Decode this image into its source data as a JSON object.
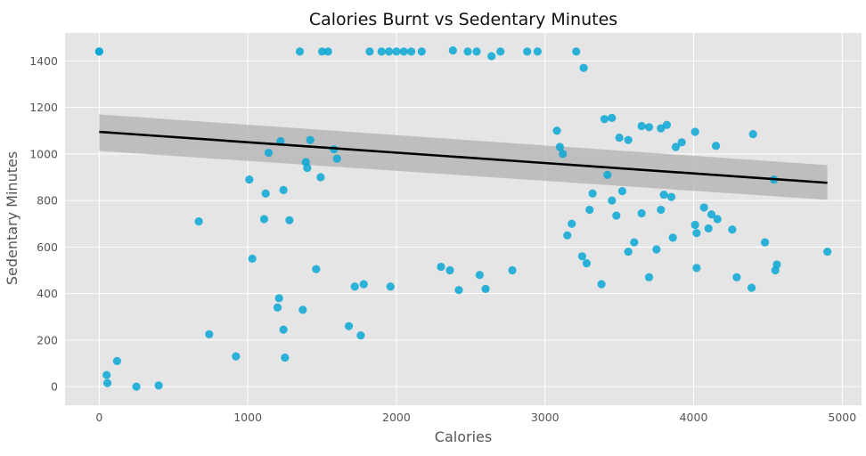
{
  "chart_data": {
    "type": "scatter",
    "title": "Calories Burnt vs Sedentary Minutes",
    "xlabel": "Calories",
    "ylabel": "Sedentary Minutes",
    "xlim": [
      -230,
      5130
    ],
    "ylim": [
      -80,
      1520
    ],
    "xticks": [
      0,
      1000,
      2000,
      3000,
      4000,
      5000
    ],
    "yticks": [
      0,
      200,
      400,
      600,
      800,
      1000,
      1200,
      1400
    ],
    "grid": true,
    "style": "ggplot",
    "colors": {
      "panel": "#E5E5E5",
      "grid": "#FFFFFF",
      "points": "#0BA7D5",
      "fit_line": "#000000",
      "ci_band": "#B0B0B0"
    },
    "regression": {
      "x_start": 0,
      "x_end": 4900,
      "y_start": 1095,
      "y_end": 876,
      "ci_start": [
        1013,
        1170
      ],
      "ci_end": [
        803,
        952
      ]
    },
    "series": [
      {
        "points": [
          [
            0,
            1440
          ],
          [
            0,
            1440
          ],
          [
            50,
            50
          ],
          [
            55,
            15
          ],
          [
            120,
            110
          ],
          [
            250,
            0
          ],
          [
            400,
            5
          ],
          [
            670,
            710
          ],
          [
            740,
            225
          ],
          [
            920,
            130
          ],
          [
            1010,
            890
          ],
          [
            1030,
            550
          ],
          [
            1110,
            720
          ],
          [
            1120,
            830
          ],
          [
            1140,
            1005
          ],
          [
            1200,
            340
          ],
          [
            1210,
            380
          ],
          [
            1220,
            1055
          ],
          [
            1240,
            245
          ],
          [
            1240,
            845
          ],
          [
            1250,
            125
          ],
          [
            1280,
            715
          ],
          [
            1350,
            1440
          ],
          [
            1370,
            330
          ],
          [
            1390,
            965
          ],
          [
            1400,
            940
          ],
          [
            1420,
            1060
          ],
          [
            1460,
            505
          ],
          [
            1490,
            900
          ],
          [
            1500,
            1440
          ],
          [
            1540,
            1440
          ],
          [
            1580,
            1020
          ],
          [
            1600,
            980
          ],
          [
            1680,
            260
          ],
          [
            1720,
            430
          ],
          [
            1760,
            220
          ],
          [
            1780,
            440
          ],
          [
            1820,
            1440
          ],
          [
            1900,
            1440
          ],
          [
            1950,
            1440
          ],
          [
            1960,
            430
          ],
          [
            2000,
            1440
          ],
          [
            2050,
            1440
          ],
          [
            2100,
            1440
          ],
          [
            2170,
            1440
          ],
          [
            2380,
            1445
          ],
          [
            2480,
            1440
          ],
          [
            2540,
            1440
          ],
          [
            2640,
            1420
          ],
          [
            2700,
            1440
          ],
          [
            2880,
            1440
          ],
          [
            2950,
            1440
          ],
          [
            3210,
            1440
          ],
          [
            3260,
            1370
          ],
          [
            3400,
            1150
          ],
          [
            3450,
            1155
          ],
          [
            3500,
            1070
          ],
          [
            3560,
            1060
          ],
          [
            3650,
            1120
          ],
          [
            3700,
            1115
          ],
          [
            3780,
            1110
          ],
          [
            3820,
            1125
          ],
          [
            3880,
            1030
          ],
          [
            3920,
            1050
          ],
          [
            4010,
            1095
          ],
          [
            4150,
            1035
          ],
          [
            4400,
            1085
          ],
          [
            4540,
            890
          ],
          [
            4010,
            695
          ],
          [
            4020,
            660
          ],
          [
            4070,
            770
          ],
          [
            4100,
            680
          ],
          [
            4120,
            740
          ],
          [
            4160,
            720
          ],
          [
            4260,
            675
          ],
          [
            4290,
            470
          ],
          [
            4390,
            425
          ],
          [
            4480,
            620
          ],
          [
            4550,
            500
          ],
          [
            4560,
            525
          ],
          [
            4900,
            580
          ],
          [
            4020,
            510
          ],
          [
            3750,
            590
          ],
          [
            3780,
            760
          ],
          [
            3800,
            825
          ],
          [
            3850,
            815
          ],
          [
            3860,
            640
          ],
          [
            3700,
            470
          ],
          [
            3650,
            745
          ],
          [
            3600,
            620
          ],
          [
            3560,
            580
          ],
          [
            3520,
            840
          ],
          [
            3480,
            735
          ],
          [
            3450,
            800
          ],
          [
            3420,
            910
          ],
          [
            3380,
            440
          ],
          [
            3320,
            830
          ],
          [
            3280,
            530
          ],
          [
            3300,
            760
          ],
          [
            3250,
            560
          ],
          [
            3180,
            700
          ],
          [
            3150,
            650
          ],
          [
            3120,
            1000
          ],
          [
            3100,
            1030
          ],
          [
            3080,
            1100
          ],
          [
            2780,
            500
          ],
          [
            2600,
            420
          ],
          [
            2560,
            480
          ],
          [
            2420,
            415
          ],
          [
            2360,
            500
          ],
          [
            2300,
            515
          ]
        ]
      }
    ]
  }
}
